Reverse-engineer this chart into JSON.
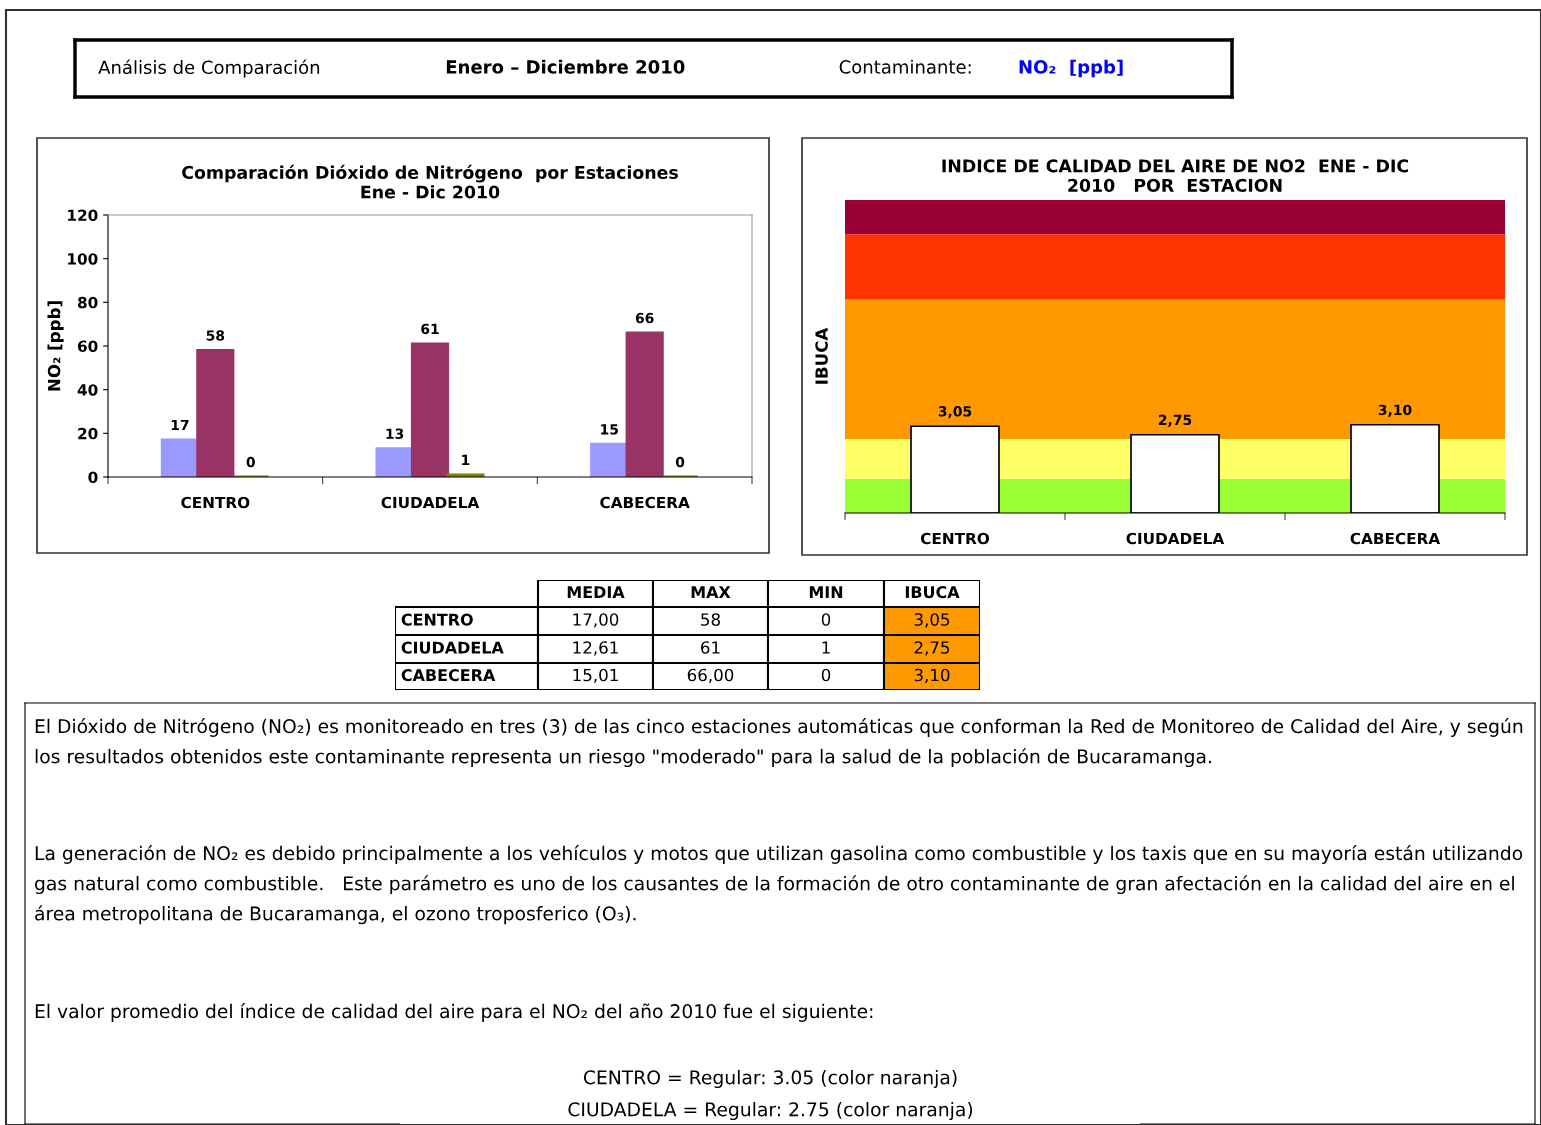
{
  "chart_data": [
    {
      "type": "other",
      "annotations": [
        "Análisis de Comparación",
        "Enero – Diciembre 2010",
        "Contaminante:",
        "NO₂  [ppb]"
      ],
      "color": "#0000ff"
    },
    {
      "type": "bar",
      "title": "Comparación Dióxido de Nitrógeno  por Estaciones\nEne - Dic 2010",
      "ylabel": "NO₂ [ppb]",
      "categories": [
        "CENTRO",
        "CIUDADELA",
        "CABECERA"
      ],
      "series": [
        {
          "color": "#9999ff",
          "values": [
            17,
            13,
            15
          ]
        },
        {
          "color": "#993366",
          "values": [
            58,
            61,
            66
          ]
        },
        {
          "color": "#808000",
          "values": [
            0,
            1,
            0
          ]
        }
      ],
      "ylim": [
        0,
        120
      ],
      "yticks": [
        0,
        20,
        40,
        60,
        80,
        100,
        120
      ],
      "data_labels": true,
      "grid": false,
      "legend": false
    },
    {
      "type": "bar",
      "ylabel": "IBUCA",
      "title": "INDICE DE CALIDAD DEL AIRE DE NO2  ENE - DIC\n2010   POR  ESTACION",
      "categories": [
        "CENTRO",
        "CIUDADELA",
        "CABECERA"
      ],
      "values": [
        3.05,
        2.75,
        3.1
      ],
      "value_labels": [
        "3,05",
        "2,75",
        "3,10"
      ],
      "color": "#ffffff",
      "ylim": [
        0,
        11
      ],
      "tick_labels": "x",
      "bands": [
        {
          "axis": "y",
          "from": 0,
          "to": 1.2,
          "color": "#99ff33"
        },
        {
          "axis": "y",
          "from": 1.2,
          "to": 2.6,
          "color": "#ffff66"
        },
        {
          "axis": "y",
          "from": 2.6,
          "to": 7.5,
          "color": "#ff9900"
        },
        {
          "axis": "y",
          "from": 7.5,
          "to": 9.8,
          "color": "#ff3300"
        },
        {
          "axis": "y",
          "from": 9.8,
          "to": 11,
          "color": "#990033"
        }
      ]
    },
    {
      "type": "other",
      "color": "#ff9900",
      "annotations": [
        "MEDIA",
        "MAX",
        "MIN",
        "IBUCA",
        "CENTRO",
        "17,00",
        "58",
        "0",
        "3,05",
        "CIUDADELA",
        "12,61",
        "61",
        "1",
        "2,75",
        "CABECERA",
        "15,01",
        "66,00",
        "0",
        "3,10"
      ]
    },
    {
      "type": "other",
      "annotations": [
        "El Dióxido de Nitrógeno (NO₂) es monitoreado en tres (3) de las cinco estaciones automáticas que conforman la Red de Monitoreo de Calidad del Aire, y según los resultados obtenidos este contaminante representa un riesgo \"moderado\" para la salud de la población de Bucaramanga.",
        "La generación de NO₂ es debido principalmente a los vehículos y motos que utilizan gasolina como combustible y los taxis que en su mayoría están utilizando gas natural como combustible.   Este parámetro es uno de los causantes de la formación de otro contaminante de gran afectación en la calidad del aire en el área metropolitana de Bucaramanga, el ozono troposferico (O₃).",
        "El valor promedio del índice de calidad del aire para el NO₂ del año 2010 fue el siguiente:"
      ]
    },
    {
      "type": "other",
      "annotations": [
        "CENTRO = Regular: 3.05 (color naranja)",
        "CIUDADELA = Regular: 2.75 (color naranja)"
      ]
    }
  ]
}
